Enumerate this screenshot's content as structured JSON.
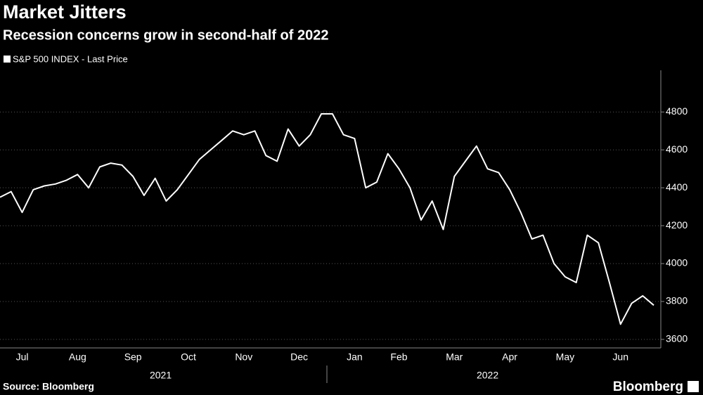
{
  "chart_data": {
    "type": "line",
    "title": "Market Jitters",
    "subtitle": "Recession concerns grow in second-half of 2022",
    "source": "Source: Bloomberg",
    "brand": "Bloomberg",
    "categories": [
      null,
      null,
      "Jul",
      null,
      null,
      null,
      null,
      "Aug",
      null,
      null,
      null,
      null,
      "Sep",
      null,
      null,
      null,
      null,
      "Oct",
      null,
      null,
      null,
      null,
      "Nov",
      null,
      null,
      null,
      null,
      "Dec",
      null,
      null,
      null,
      null,
      "Jan",
      null,
      null,
      null,
      "Feb",
      null,
      null,
      null,
      null,
      "Mar",
      null,
      null,
      null,
      null,
      "Apr",
      null,
      null,
      null,
      null,
      "May",
      null,
      null,
      null,
      null,
      "Jun",
      null,
      null,
      null
    ],
    "year_labels": [
      "2021",
      "2022"
    ],
    "series": [
      {
        "name": "S&P 500 INDEX - Last Price",
        "color": "#ffffff",
        "values": [
          4350,
          4380,
          4270,
          4390,
          4410,
          4420,
          4440,
          4470,
          4400,
          4510,
          4530,
          4520,
          4460,
          4360,
          4450,
          4330,
          4390,
          4470,
          4550,
          4600,
          4650,
          4700,
          4680,
          4700,
          4570,
          4540,
          4710,
          4620,
          4680,
          4790,
          4790,
          4680,
          4660,
          4400,
          4430,
          4580,
          4500,
          4400,
          4230,
          4330,
          4180,
          4460,
          4540,
          4620,
          4500,
          4480,
          4390,
          4270,
          4130,
          4150,
          4000,
          3930,
          3900,
          4150,
          4110,
          3900,
          3680,
          3790,
          3830,
          3780
        ]
      }
    ],
    "ylim": [
      3555,
      5020
    ],
    "yticks": [
      3600,
      3800,
      4000,
      4200,
      4400,
      4600,
      4800
    ],
    "grid": true
  }
}
